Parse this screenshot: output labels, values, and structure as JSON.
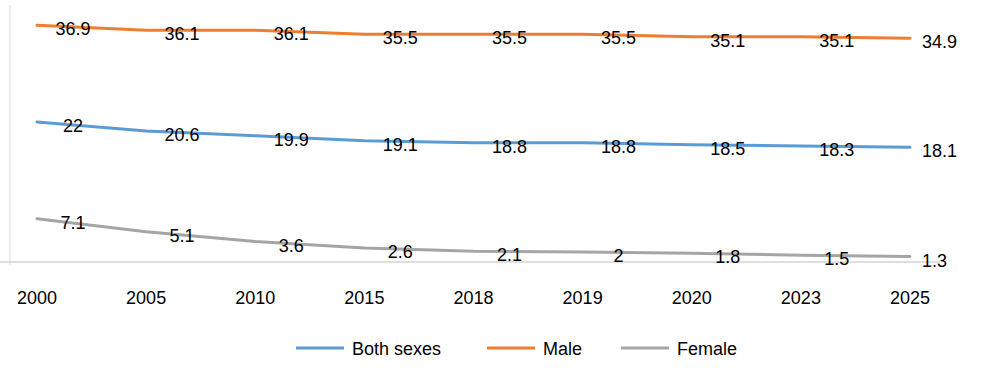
{
  "chart_data": {
    "type": "line",
    "categories": [
      "2000",
      "2005",
      "2010",
      "2015",
      "2018",
      "2019",
      "2020",
      "2023",
      "2025"
    ],
    "series": [
      {
        "name": "Both sexes",
        "color": "#5b9bd5",
        "values": [
          22,
          20.6,
          19.9,
          19.1,
          18.8,
          18.8,
          18.5,
          18.3,
          18.1
        ]
      },
      {
        "name": "Male",
        "color": "#ed7d31",
        "values": [
          36.9,
          36.1,
          36.1,
          35.5,
          35.5,
          35.5,
          35.1,
          35.1,
          34.9
        ]
      },
      {
        "name": "Female",
        "color": "#a5a5a5",
        "values": [
          7.1,
          5.1,
          3.6,
          2.6,
          2.1,
          2,
          1.8,
          1.5,
          1.3
        ]
      }
    ],
    "ylim": [
      0,
      40
    ],
    "grid": false,
    "legend": "bottom",
    "data_labels": true,
    "tick_labels": "x",
    "line_style": "solid",
    "marker": "none"
  }
}
